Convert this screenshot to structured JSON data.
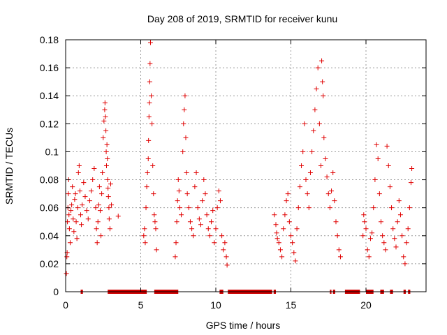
{
  "chart_data": {
    "type": "scatter",
    "title": "Day 208 of 2019, SRMTID for receiver kunu",
    "xlabel": "GPS time / hours",
    "ylabel": "SRMTID / TECUs",
    "xlim": [
      0,
      24
    ],
    "ylim": [
      0,
      0.18
    ],
    "x_ticks": [
      0,
      5,
      10,
      15,
      20
    ],
    "x_tick_labels": [
      "0",
      "5",
      "10",
      "15",
      "20"
    ],
    "y_ticks": [
      0,
      0.02,
      0.04,
      0.06,
      0.08,
      0.1,
      0.12,
      0.14,
      0.16,
      0.18
    ],
    "y_tick_labels": [
      "0",
      "0.02",
      "0.04",
      "0.06",
      "0.08",
      "0.1",
      "0.12",
      "0.14",
      "0.16",
      "0.18"
    ],
    "grid": true,
    "marker": "plus",
    "series": [
      {
        "name": "SRMTID",
        "color": "#e00000",
        "points": [
          [
            0.05,
            0.013
          ],
          [
            0.08,
            0.025
          ],
          [
            0.1,
            0.028
          ],
          [
            0.12,
            0.05
          ],
          [
            0.15,
            0.06
          ],
          [
            0.18,
            0.07
          ],
          [
            0.2,
            0.08
          ],
          [
            0.22,
            0.055
          ],
          [
            0.25,
            0.045
          ],
          [
            0.3,
            0.035
          ],
          [
            0.35,
            0.058
          ],
          [
            0.4,
            0.062
          ],
          [
            0.45,
            0.075
          ],
          [
            0.5,
            0.052
          ],
          [
            0.55,
            0.043
          ],
          [
            0.6,
            0.066
          ],
          [
            0.65,
            0.07
          ],
          [
            0.7,
            0.05
          ],
          [
            0.75,
            0.038
          ],
          [
            0.8,
            0.06
          ],
          [
            0.85,
            0.085
          ],
          [
            0.9,
            0.09
          ],
          [
            0.95,
            0.072
          ],
          [
            1.0,
            0.055
          ],
          [
            1.05,
            0.048
          ],
          [
            1.1,
            0.062
          ],
          [
            1.2,
            0.078
          ],
          [
            1.3,
            0.068
          ],
          [
            1.4,
            0.058
          ],
          [
            1.5,
            0.052
          ],
          [
            1.6,
            0.065
          ],
          [
            1.7,
            0.072
          ],
          [
            1.8,
            0.08
          ],
          [
            1.9,
            0.088
          ],
          [
            2.0,
            0.06
          ],
          [
            2.05,
            0.045
          ],
          [
            2.1,
            0.035
          ],
          [
            2.15,
            0.05
          ],
          [
            2.2,
            0.062
          ],
          [
            2.25,
            0.075
          ],
          [
            2.3,
            0.058
          ],
          [
            2.35,
            0.04
          ],
          [
            2.4,
            0.07
          ],
          [
            2.45,
            0.085
          ],
          [
            2.5,
            0.11
          ],
          [
            2.55,
            0.122
          ],
          [
            2.6,
            0.13
          ],
          [
            2.62,
            0.135
          ],
          [
            2.65,
            0.125
          ],
          [
            2.68,
            0.115
          ],
          [
            2.7,
            0.1
          ],
          [
            2.72,
            0.09
          ],
          [
            2.75,
            0.105
          ],
          [
            2.78,
            0.095
          ],
          [
            2.8,
            0.08
          ],
          [
            2.82,
            0.074
          ],
          [
            2.85,
            0.068
          ],
          [
            2.88,
            0.06
          ],
          [
            2.9,
            0.052
          ],
          [
            2.95,
            0.045
          ],
          [
            3.0,
            0.077
          ],
          [
            3.05,
            0.062
          ],
          [
            3.5,
            0.054
          ],
          [
            5.2,
            0.04
          ],
          [
            5.25,
            0.045
          ],
          [
            5.3,
            0.035
          ],
          [
            5.35,
            0.06
          ],
          [
            5.4,
            0.075
          ],
          [
            5.45,
            0.085
          ],
          [
            5.5,
            0.095
          ],
          [
            5.52,
            0.108
          ],
          [
            5.55,
            0.125
          ],
          [
            5.58,
            0.135
          ],
          [
            5.6,
            0.15
          ],
          [
            5.62,
            0.163
          ],
          [
            5.65,
            0.178
          ],
          [
            5.7,
            0.14
          ],
          [
            5.75,
            0.12
          ],
          [
            5.8,
            0.09
          ],
          [
            5.85,
            0.07
          ],
          [
            5.9,
            0.055
          ],
          [
            5.95,
            0.05
          ],
          [
            6.0,
            0.045
          ],
          [
            6.05,
            0.03
          ],
          [
            7.3,
            0.025
          ],
          [
            7.35,
            0.035
          ],
          [
            7.4,
            0.05
          ],
          [
            7.45,
            0.065
          ],
          [
            7.5,
            0.08
          ],
          [
            7.55,
            0.072
          ],
          [
            7.6,
            0.06
          ],
          [
            7.7,
            0.055
          ],
          [
            7.8,
            0.1
          ],
          [
            7.85,
            0.12
          ],
          [
            7.9,
            0.13
          ],
          [
            7.95,
            0.14
          ],
          [
            8.0,
            0.11
          ],
          [
            8.05,
            0.085
          ],
          [
            8.1,
            0.07
          ],
          [
            8.2,
            0.06
          ],
          [
            8.3,
            0.05
          ],
          [
            8.4,
            0.045
          ],
          [
            8.5,
            0.04
          ],
          [
            8.6,
            0.075
          ],
          [
            8.7,
            0.085
          ],
          [
            8.8,
            0.06
          ],
          [
            8.9,
            0.052
          ],
          [
            9.0,
            0.048
          ],
          [
            9.1,
            0.065
          ],
          [
            9.2,
            0.08
          ],
          [
            9.3,
            0.07
          ],
          [
            9.4,
            0.055
          ],
          [
            9.5,
            0.045
          ],
          [
            9.6,
            0.04
          ],
          [
            9.7,
            0.05
          ],
          [
            9.8,
            0.058
          ],
          [
            9.9,
            0.035
          ],
          [
            10.0,
            0.045
          ],
          [
            10.1,
            0.06
          ],
          [
            10.2,
            0.072
          ],
          [
            10.3,
            0.065
          ],
          [
            10.4,
            0.04
          ],
          [
            10.5,
            0.03
          ],
          [
            10.6,
            0.035
          ],
          [
            10.7,
            0.025
          ],
          [
            10.75,
            0.019
          ],
          [
            13.9,
            0.055
          ],
          [
            14.0,
            0.048
          ],
          [
            14.05,
            0.042
          ],
          [
            14.1,
            0.038
          ],
          [
            14.2,
            0.035
          ],
          [
            14.3,
            0.03
          ],
          [
            14.4,
            0.025
          ],
          [
            14.5,
            0.045
          ],
          [
            14.6,
            0.055
          ],
          [
            14.7,
            0.065
          ],
          [
            14.8,
            0.07
          ],
          [
            14.9,
            0.05
          ],
          [
            15.0,
            0.04
          ],
          [
            15.1,
            0.035
          ],
          [
            15.2,
            0.028
          ],
          [
            15.3,
            0.022
          ],
          [
            15.4,
            0.045
          ],
          [
            15.5,
            0.06
          ],
          [
            15.6,
            0.075
          ],
          [
            15.7,
            0.09
          ],
          [
            15.8,
            0.1
          ],
          [
            15.9,
            0.12
          ],
          [
            16.0,
            0.08
          ],
          [
            16.1,
            0.07
          ],
          [
            16.2,
            0.06
          ],
          [
            16.3,
            0.085
          ],
          [
            16.4,
            0.1
          ],
          [
            16.5,
            0.115
          ],
          [
            16.6,
            0.13
          ],
          [
            16.7,
            0.145
          ],
          [
            16.8,
            0.16
          ],
          [
            16.9,
            0.12
          ],
          [
            17.0,
            0.09
          ],
          [
            17.05,
            0.165
          ],
          [
            17.1,
            0.15
          ],
          [
            17.15,
            0.14
          ],
          [
            17.2,
            0.11
          ],
          [
            17.3,
            0.095
          ],
          [
            17.4,
            0.082
          ],
          [
            17.5,
            0.07
          ],
          [
            17.6,
            0.06
          ],
          [
            17.7,
            0.072
          ],
          [
            17.8,
            0.085
          ],
          [
            17.9,
            0.065
          ],
          [
            18.0,
            0.05
          ],
          [
            18.1,
            0.04
          ],
          [
            18.2,
            0.03
          ],
          [
            18.3,
            0.025
          ],
          [
            19.8,
            0.04
          ],
          [
            19.85,
            0.055
          ],
          [
            19.9,
            0.05
          ],
          [
            20.0,
            0.045
          ],
          [
            20.1,
            0.03
          ],
          [
            20.2,
            0.025
          ],
          [
            20.3,
            0.038
          ],
          [
            20.4,
            0.042
          ],
          [
            20.5,
            0.06
          ],
          [
            20.6,
            0.08
          ],
          [
            20.7,
            0.105
          ],
          [
            20.8,
            0.095
          ],
          [
            20.9,
            0.07
          ],
          [
            21.0,
            0.05
          ],
          [
            21.1,
            0.04
          ],
          [
            21.2,
            0.035
          ],
          [
            21.3,
            0.03
          ],
          [
            21.4,
            0.104
          ],
          [
            21.5,
            0.09
          ],
          [
            21.6,
            0.075
          ],
          [
            21.7,
            0.06
          ],
          [
            21.8,
            0.045
          ],
          [
            21.9,
            0.038
          ],
          [
            22.0,
            0.032
          ],
          [
            22.1,
            0.05
          ],
          [
            22.2,
            0.065
          ],
          [
            22.3,
            0.055
          ],
          [
            22.4,
            0.04
          ],
          [
            22.5,
            0.025
          ],
          [
            22.6,
            0.02
          ],
          [
            22.7,
            0.035
          ],
          [
            22.8,
            0.045
          ],
          [
            22.9,
            0.06
          ],
          [
            23.0,
            0.078
          ],
          [
            23.05,
            0.088
          ]
        ]
      }
    ],
    "zero_markers": {
      "name": "no-data markers at y=0",
      "color": "#d00000",
      "segments": [
        [
          1.0,
          1.15
        ],
        [
          2.8,
          5.4
        ],
        [
          5.9,
          7.5
        ],
        [
          10.25,
          10.5
        ],
        [
          10.8,
          13.75
        ],
        [
          13.85,
          14.0
        ],
        [
          17.6,
          17.7
        ],
        [
          17.8,
          17.95
        ],
        [
          18.6,
          19.6
        ],
        [
          20.0,
          20.5
        ],
        [
          20.95,
          21.2
        ],
        [
          21.6,
          21.8
        ],
        [
          22.5,
          22.65
        ],
        [
          22.8,
          22.95
        ]
      ]
    }
  }
}
